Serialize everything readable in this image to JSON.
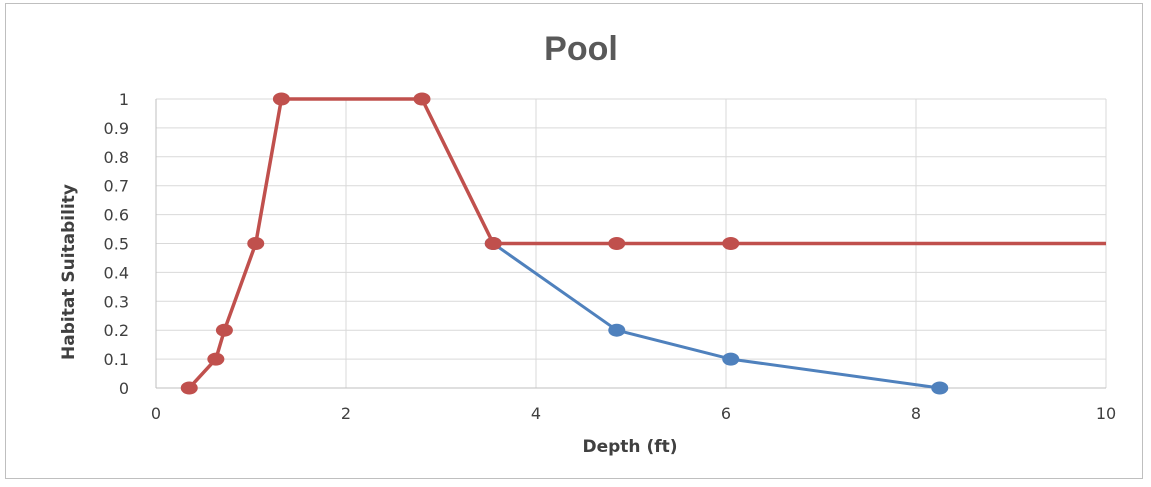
{
  "chart_data": {
    "type": "line",
    "title": "Pool",
    "xlabel": "Depth (ft)",
    "ylabel": "Habitat Suitability",
    "xlim": [
      0,
      10
    ],
    "ylim": [
      0,
      1
    ],
    "x_ticks": [
      0,
      2,
      4,
      6,
      8,
      10
    ],
    "y_ticks": [
      0,
      0.1,
      0.2,
      0.3,
      0.4,
      0.5,
      0.6,
      0.7,
      0.8,
      0.9,
      1
    ],
    "x_tick_labels": [
      "0",
      "2",
      "4",
      "6",
      "8",
      "10"
    ],
    "y_tick_labels": [
      "0",
      "0.1",
      "0.2",
      "0.3",
      "0.4",
      "0.5",
      "0.6",
      "0.7",
      "0.8",
      "0.9",
      "1"
    ],
    "grid": true,
    "legend": "none",
    "series": [
      {
        "color": "#4f81bd",
        "points": [
          {
            "x": 3.55,
            "y": 0.5
          },
          {
            "x": 4.85,
            "y": 0.2
          },
          {
            "x": 6.05,
            "y": 0.1
          },
          {
            "x": 8.25,
            "y": 0.0
          }
        ]
      },
      {
        "color": "#c0504d",
        "extends_to_axis_end": true,
        "points": [
          {
            "x": 0.35,
            "y": 0.0
          },
          {
            "x": 0.63,
            "y": 0.1
          },
          {
            "x": 0.72,
            "y": 0.2
          },
          {
            "x": 1.05,
            "y": 0.5
          },
          {
            "x": 1.32,
            "y": 1.0
          },
          {
            "x": 2.8,
            "y": 1.0
          },
          {
            "x": 3.55,
            "y": 0.5
          },
          {
            "x": 4.85,
            "y": 0.5
          },
          {
            "x": 6.05,
            "y": 0.5
          }
        ]
      }
    ]
  }
}
